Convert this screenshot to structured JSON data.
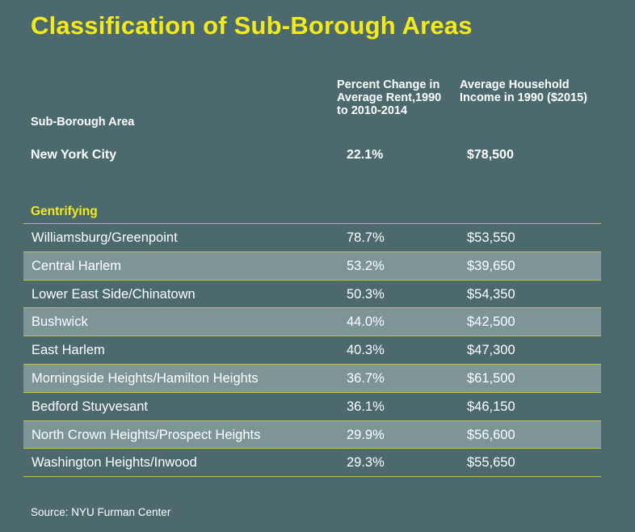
{
  "colors": {
    "background": "#4c6a6e",
    "accent": "#f2ea1d",
    "row_shade": "#7e9598",
    "divider": "#c3bf58"
  },
  "chart_data": {
    "type": "table",
    "title": "Classification of Sub-Borough Areas",
    "columns": [
      "Sub-Borough Area",
      "Percent Change in Average Rent,1990 to 2010-2014",
      "Average Household Income in 1990 ($2015)"
    ],
    "summary_row": {
      "area": "New York City",
      "rent_change": "22.1%",
      "income": "$78,500"
    },
    "section": "Gentrifying",
    "rows": [
      {
        "area": "Williamsburg/Greenpoint",
        "rent_change": "78.7%",
        "income": "$53,550"
      },
      {
        "area": "Central Harlem",
        "rent_change": "53.2%",
        "income": "$39,650"
      },
      {
        "area": "Lower East Side/Chinatown",
        "rent_change": "50.3%",
        "income": "$54,350"
      },
      {
        "area": "Bushwick",
        "rent_change": "44.0%",
        "income": "$42,500"
      },
      {
        "area": "East Harlem",
        "rent_change": "40.3%",
        "income": "$47,300"
      },
      {
        "area": "Morningside Heights/Hamilton Heights",
        "rent_change": "36.7%",
        "income": "$61,500"
      },
      {
        "area": "Bedford Stuyvesant",
        "rent_change": "36.1%",
        "income": "$46,150"
      },
      {
        "area": "North Crown Heights/Prospect Heights",
        "rent_change": "29.9%",
        "income": "$56,600"
      },
      {
        "area": "Washington Heights/Inwood",
        "rent_change": "29.3%",
        "income": "$55,650"
      }
    ],
    "source": "Source: NYU Furman Center"
  }
}
